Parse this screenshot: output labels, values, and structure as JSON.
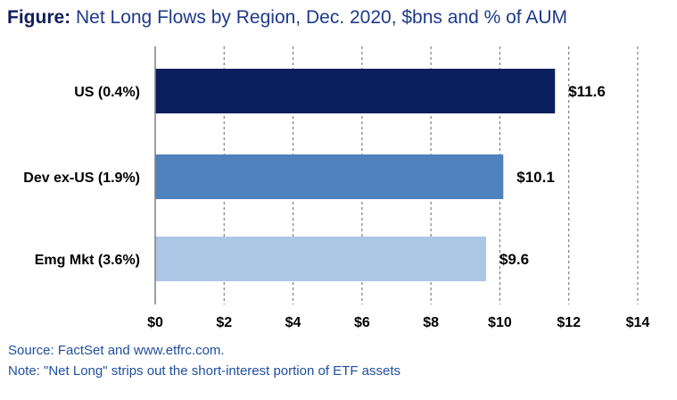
{
  "title": {
    "lead": "Figure:",
    "rest": " Net Long Flows by Region, Dec. 2020, $bns and % of AUM"
  },
  "chart_data": {
    "type": "bar",
    "orientation": "horizontal",
    "categories": [
      "US (0.4%)",
      "Dev ex-US (1.9%)",
      "Emg Mkt (3.6%)"
    ],
    "values": [
      11.6,
      10.1,
      9.6
    ],
    "value_labels": [
      "$11.6",
      "$10.1",
      "$9.6"
    ],
    "colors": [
      "#0b1e5e",
      "#4f81bd",
      "#adc6e6"
    ],
    "xlim": [
      0,
      14
    ],
    "x_ticks": [
      0,
      2,
      4,
      6,
      8,
      10,
      12,
      14
    ],
    "x_tick_labels": [
      "$0",
      "$2",
      "$4",
      "$6",
      "$8",
      "$10",
      "$12",
      "$14"
    ],
    "grid": "vertical dashed",
    "legend": "none"
  },
  "footer": {
    "source": "Source: FactSet and www.etfrc.com.",
    "note": "Note: \"Net Long\" strips out the short-interest portion of ETF assets"
  }
}
